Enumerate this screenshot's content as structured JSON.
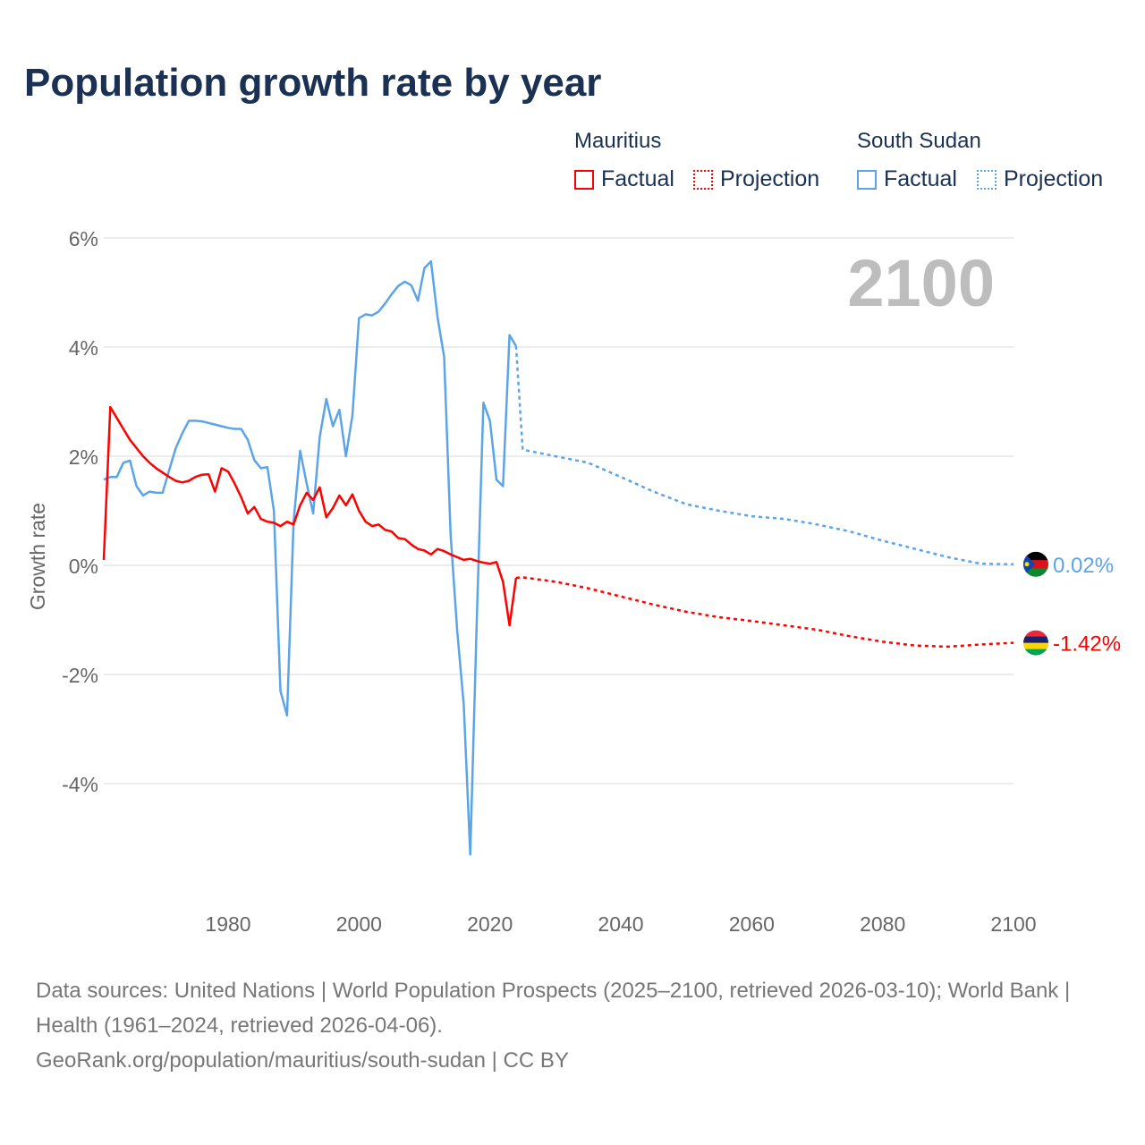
{
  "title": "Population growth rate by year",
  "legend": {
    "groups": [
      {
        "name": "Mauritius",
        "factual": "Factual",
        "projection": "Projection",
        "color": "#ff0000"
      },
      {
        "name": "South Sudan",
        "factual": "Factual",
        "projection": "Projection",
        "color": "#5ca4e8"
      }
    ]
  },
  "year_label": "2100",
  "footer": {
    "sources": "Data sources: United Nations | World Population Prospects (2025–2100, retrieved 2026-03-10); World Bank | Health (1961–2024, retrieved 2026-04-06).",
    "credit": "GeoRank.org/population/mauritius/south-sudan | CC BY"
  },
  "chart_data": {
    "type": "line",
    "title": "Population growth rate by year",
    "xlabel": "",
    "ylabel": "Growth rate",
    "xlim": [
      1961,
      2100
    ],
    "ylim": [
      -5.5,
      6
    ],
    "xticks": [
      1980,
      2000,
      2020,
      2040,
      2060,
      2080,
      2100
    ],
    "xtick_labels": [
      "1980",
      "2000",
      "2020",
      "2040",
      "2060",
      "2080",
      "2100"
    ],
    "yticks": [
      6,
      4,
      2,
      0,
      -2,
      -4
    ],
    "ytick_labels": [
      "6%",
      "4%",
      "2%",
      "0%",
      "-2%",
      "-4%"
    ],
    "grid": true,
    "legend_position": "top-right",
    "series": [
      {
        "name": "Mauritius",
        "color": "#ff0000",
        "end_label": "-1.42%",
        "factual": {
          "x": [
            1961,
            1962,
            1963,
            1964,
            1965,
            1966,
            1967,
            1968,
            1969,
            1970,
            1971,
            1972,
            1973,
            1974,
            1975,
            1976,
            1977,
            1978,
            1979,
            1980,
            1981,
            1982,
            1983,
            1984,
            1985,
            1986,
            1987,
            1988,
            1989,
            1990,
            1991,
            1992,
            1993,
            1994,
            1995,
            1996,
            1997,
            1998,
            1999,
            2000,
            2001,
            2002,
            2003,
            2004,
            2005,
            2006,
            2007,
            2008,
            2009,
            2010,
            2011,
            2012,
            2013,
            2014,
            2015,
            2016,
            2017,
            2018,
            2019,
            2020,
            2021,
            2022,
            2023,
            2024
          ],
          "y": [
            0.1,
            2.9,
            2.7,
            2.5,
            2.3,
            2.15,
            2.0,
            1.88,
            1.78,
            1.7,
            1.62,
            1.55,
            1.52,
            1.55,
            1.62,
            1.66,
            1.67,
            1.35,
            1.78,
            1.72,
            1.5,
            1.25,
            0.95,
            1.07,
            0.85,
            0.8,
            0.78,
            0.72,
            0.8,
            0.75,
            1.1,
            1.33,
            1.2,
            1.43,
            0.88,
            1.05,
            1.28,
            1.1,
            1.3,
            1.0,
            0.8,
            0.72,
            0.75,
            0.65,
            0.62,
            0.5,
            0.48,
            0.38,
            0.3,
            0.27,
            0.2,
            0.3,
            0.26,
            0.2,
            0.15,
            0.1,
            0.12,
            0.08,
            0.05,
            0.03,
            0.06,
            -0.3,
            -1.1,
            -0.23
          ]
        },
        "projection": {
          "x": [
            2024,
            2025,
            2030,
            2035,
            2040,
            2045,
            2050,
            2055,
            2060,
            2065,
            2070,
            2075,
            2080,
            2085,
            2090,
            2095,
            2100
          ],
          "y": [
            -0.23,
            -0.22,
            -0.3,
            -0.42,
            -0.57,
            -0.72,
            -0.85,
            -0.95,
            -1.02,
            -1.1,
            -1.18,
            -1.3,
            -1.4,
            -1.47,
            -1.49,
            -1.45,
            -1.42
          ]
        }
      },
      {
        "name": "South Sudan",
        "color": "#5ca4e8",
        "end_label": "0.02%",
        "factual": {
          "x": [
            1961,
            1962,
            1963,
            1964,
            1965,
            1966,
            1967,
            1968,
            1969,
            1970,
            1971,
            1972,
            1973,
            1974,
            1975,
            1976,
            1977,
            1978,
            1979,
            1980,
            1981,
            1982,
            1983,
            1984,
            1985,
            1986,
            1987,
            1988,
            1989,
            1990,
            1991,
            1992,
            1993,
            1994,
            1995,
            1996,
            1997,
            1998,
            1999,
            2000,
            2001,
            2002,
            2003,
            2004,
            2005,
            2006,
            2007,
            2008,
            2009,
            2010,
            2011,
            2012,
            2013,
            2014,
            2015,
            2016,
            2017,
            2018,
            2019,
            2020,
            2021,
            2022,
            2023,
            2024
          ],
          "y": [
            1.57,
            1.62,
            1.62,
            1.88,
            1.92,
            1.45,
            1.28,
            1.35,
            1.33,
            1.33,
            1.75,
            2.15,
            2.42,
            2.65,
            2.65,
            2.64,
            2.61,
            2.58,
            2.55,
            2.52,
            2.5,
            2.5,
            2.3,
            1.93,
            1.78,
            1.8,
            1.0,
            -2.3,
            -2.75,
            0.8,
            2.1,
            1.5,
            0.95,
            2.35,
            3.05,
            2.55,
            2.85,
            2.0,
            2.75,
            4.53,
            4.6,
            4.58,
            4.65,
            4.8,
            4.97,
            5.12,
            5.2,
            5.13,
            4.85,
            5.45,
            5.57,
            4.55,
            3.82,
            0.55,
            -1.2,
            -2.55,
            -5.3,
            -1.0,
            2.98,
            2.65,
            1.57,
            1.45,
            4.22,
            4.02
          ]
        },
        "projection": {
          "x": [
            2024,
            2025,
            2030,
            2035,
            2040,
            2045,
            2050,
            2055,
            2060,
            2065,
            2070,
            2075,
            2080,
            2085,
            2090,
            2095,
            2100
          ],
          "y": [
            4.02,
            2.12,
            2.0,
            1.88,
            1.62,
            1.35,
            1.12,
            1.0,
            0.9,
            0.85,
            0.75,
            0.62,
            0.45,
            0.3,
            0.15,
            0.03,
            0.02
          ]
        }
      }
    ]
  }
}
